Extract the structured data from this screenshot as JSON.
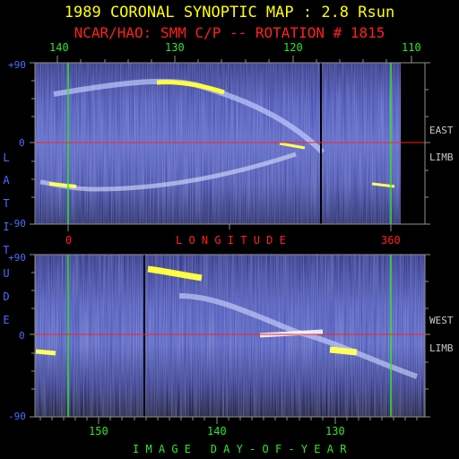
{
  "title": "1989 CORONAL SYNOPTIC MAP : 2.8 Rsun",
  "subtitle": "NCAR/HAO: SMM C/P -- ROTATION # 1815",
  "top_panel": {
    "longitude_ticks": [
      "140",
      "130",
      "120",
      "110"
    ],
    "limb_label_1": "EAST",
    "limb_label_2": "LIMB",
    "lat_top": "+90",
    "lat_mid": "0",
    "lat_bot": "-90"
  },
  "middle_axis": {
    "start": "0",
    "label": "L O N G I T U D E",
    "end": "360"
  },
  "side_label": [
    "L",
    "A",
    "T",
    "I",
    "T",
    "U",
    "D",
    "E"
  ],
  "bottom_panel": {
    "day_ticks": [
      "150",
      "140",
      "130"
    ],
    "limb_label_1": "WEST",
    "limb_label_2": "LIMB",
    "lat_top": "+90",
    "lat_mid": "0",
    "lat_bot": "-90",
    "xlabel": "I M A G E   D A Y - O F - Y E A R"
  },
  "colors": {
    "background": "#000000",
    "title": "#ffff00",
    "subtitle": "#ff2020",
    "axis_green": "#2ee62e",
    "axis_blue": "#4a6dff",
    "equator_red": "#ff2020",
    "frame": "#a0a0a0"
  }
}
